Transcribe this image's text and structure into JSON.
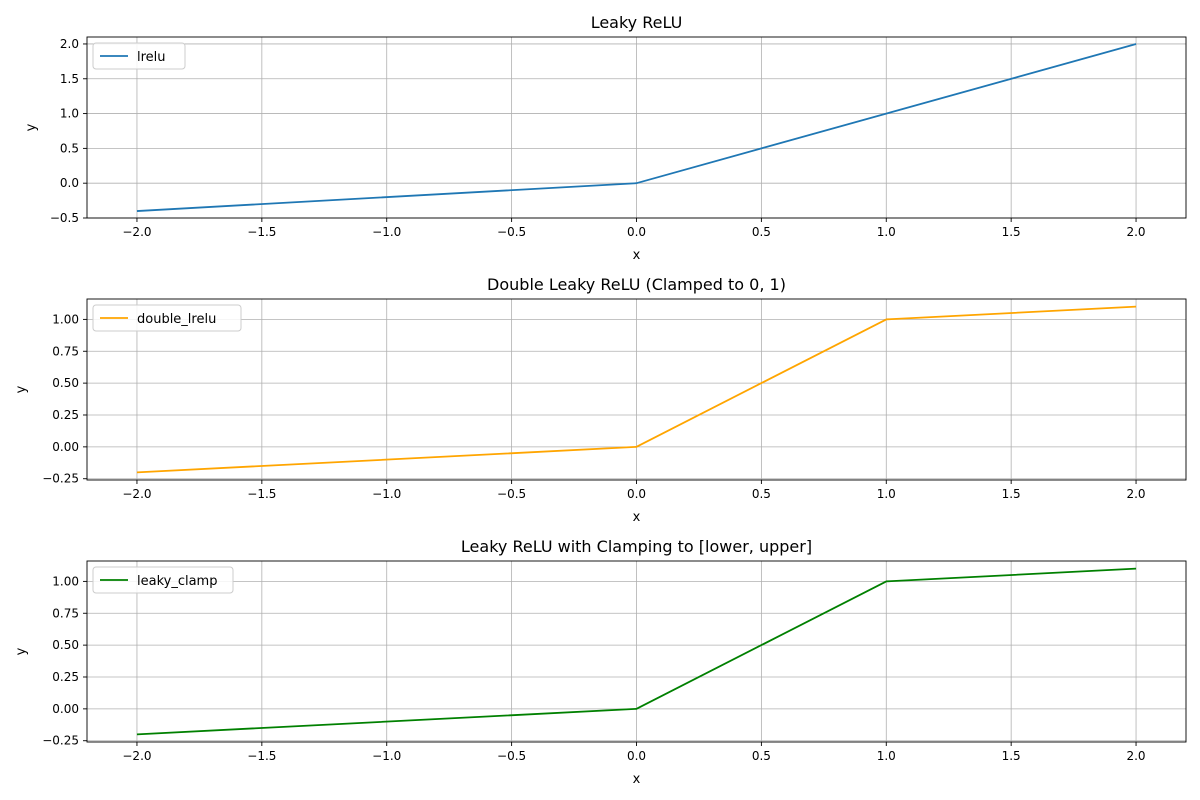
{
  "chart_data": [
    {
      "type": "line",
      "title": "Leaky ReLU",
      "xlabel": "x",
      "ylabel": "y",
      "xlim": [
        -2.2,
        2.2
      ],
      "ylim": [
        -0.5,
        2.1
      ],
      "xticks": [
        -2.0,
        -1.5,
        -1.0,
        -0.5,
        0.0,
        0.5,
        1.0,
        1.5,
        2.0
      ],
      "xtick_labels": [
        "−2.0",
        "−1.5",
        "−1.0",
        "−0.5",
        "0.0",
        "0.5",
        "1.0",
        "1.5",
        "2.0"
      ],
      "yticks": [
        -0.5,
        0.0,
        0.5,
        1.0,
        1.5,
        2.0
      ],
      "ytick_labels": [
        "−0.5",
        "0.0",
        "0.5",
        "1.0",
        "1.5",
        "2.0"
      ],
      "grid": true,
      "legend": "upper-left",
      "series": [
        {
          "name": "lrelu",
          "color": "#1f77b4",
          "x": [
            -2.0,
            0.0,
            2.0
          ],
          "y": [
            -0.4,
            0.0,
            2.0
          ]
        }
      ]
    },
    {
      "type": "line",
      "title": "Double Leaky ReLU (Clamped to 0, 1)",
      "xlabel": "x",
      "ylabel": "y",
      "xlim": [
        -2.2,
        2.2
      ],
      "ylim": [
        -0.26,
        1.16
      ],
      "xticks": [
        -2.0,
        -1.5,
        -1.0,
        -0.5,
        0.0,
        0.5,
        1.0,
        1.5,
        2.0
      ],
      "xtick_labels": [
        "−2.0",
        "−1.5",
        "−1.0",
        "−0.5",
        "0.0",
        "0.5",
        "1.0",
        "1.5",
        "2.0"
      ],
      "yticks": [
        -0.25,
        0.0,
        0.25,
        0.5,
        0.75,
        1.0
      ],
      "ytick_labels": [
        "−0.25",
        "0.00",
        "0.25",
        "0.50",
        "0.75",
        "1.00"
      ],
      "grid": true,
      "legend": "upper-left",
      "series": [
        {
          "name": "double_lrelu",
          "color": "#ffa500",
          "x": [
            -2.0,
            0.0,
            1.0,
            2.0
          ],
          "y": [
            -0.2,
            0.0,
            1.0,
            1.1
          ]
        }
      ]
    },
    {
      "type": "line",
      "title": "Leaky ReLU with Clamping to [lower, upper]",
      "xlabel": "x",
      "ylabel": "y",
      "xlim": [
        -2.2,
        2.2
      ],
      "ylim": [
        -0.26,
        1.16
      ],
      "xticks": [
        -2.0,
        -1.5,
        -1.0,
        -0.5,
        0.0,
        0.5,
        1.0,
        1.5,
        2.0
      ],
      "xtick_labels": [
        "−2.0",
        "−1.5",
        "−1.0",
        "−0.5",
        "0.0",
        "0.5",
        "1.0",
        "1.5",
        "2.0"
      ],
      "yticks": [
        -0.25,
        0.0,
        0.25,
        0.5,
        0.75,
        1.0
      ],
      "ytick_labels": [
        "−0.25",
        "0.00",
        "0.25",
        "0.50",
        "0.75",
        "1.00"
      ],
      "grid": true,
      "legend": "upper-left",
      "series": [
        {
          "name": "leaky_clamp",
          "color": "#008000",
          "x": [
            -2.0,
            0.0,
            1.0,
            2.0
          ],
          "y": [
            -0.2,
            0.0,
            1.0,
            1.1
          ]
        }
      ]
    }
  ]
}
